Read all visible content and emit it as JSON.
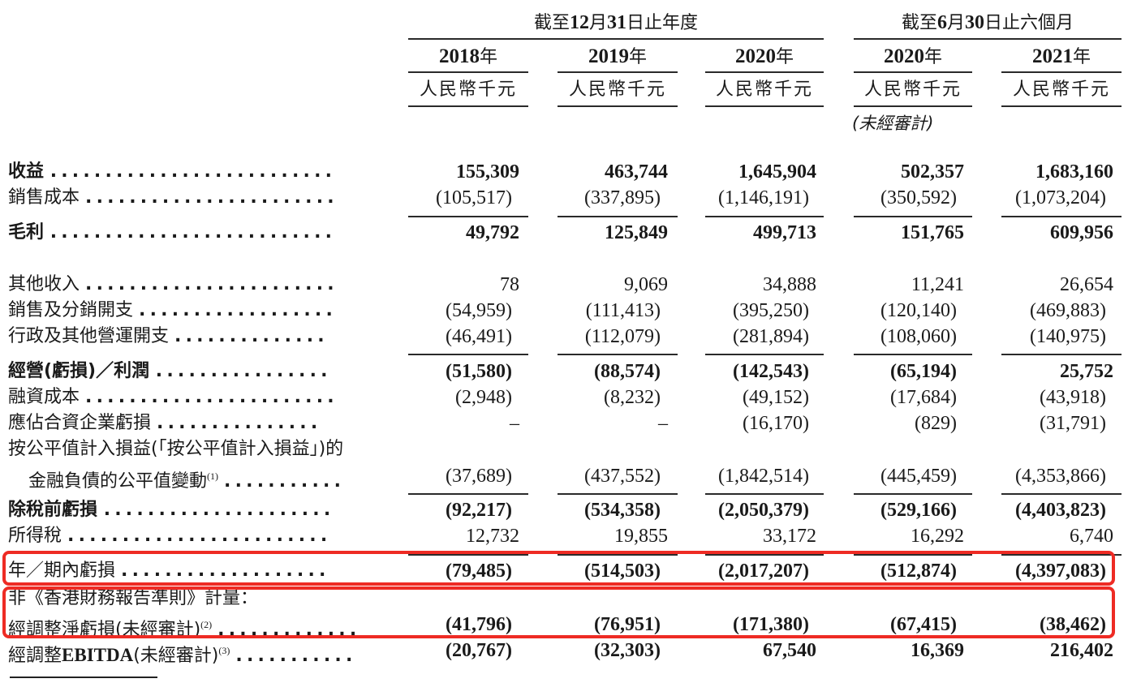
{
  "header": {
    "groups": [
      {
        "title_pre": "截至",
        "title_num1": "12",
        "title_mid": "月",
        "title_num2": "31",
        "title_post": "日止年度"
      },
      {
        "title_pre": "截至",
        "title_num1": "6",
        "title_mid": "月",
        "title_num2": "30",
        "title_post": "日止六個月"
      }
    ],
    "columns": [
      {
        "year": "2018",
        "year_suffix": "年",
        "unit": "人民幣千元",
        "note": ""
      },
      {
        "year": "2019",
        "year_suffix": "年",
        "unit": "人民幣千元",
        "note": ""
      },
      {
        "year": "2020",
        "year_suffix": "年",
        "unit": "人民幣千元",
        "note": ""
      },
      {
        "year": "2020",
        "year_suffix": "年",
        "unit": "人民幣千元",
        "note": "(未經審計)"
      },
      {
        "year": "2021",
        "year_suffix": "年",
        "unit": "人民幣千元",
        "note": ""
      }
    ]
  },
  "rows": [
    {
      "label": "收益",
      "dots": "..........................",
      "bold": true,
      "values": [
        "155,309",
        "463,744",
        "1,645,904",
        "502,357",
        "1,683,160"
      ]
    },
    {
      "label": "銷售成本",
      "dots": ".......................",
      "bold": false,
      "values": [
        "(105,517)",
        "(337,895)",
        "(1,146,191)",
        "(350,592)",
        "(1,073,204)"
      ]
    },
    {
      "label": "毛利",
      "dots": "..........................",
      "bold": true,
      "values": [
        "49,792",
        "125,849",
        "499,713",
        "151,765",
        "609,956"
      ]
    },
    {
      "label": "其他收入",
      "dots": ".......................",
      "bold": false,
      "values": [
        "78",
        "9,069",
        "34,888",
        "11,241",
        "26,654"
      ]
    },
    {
      "label": "銷售及分銷開支",
      "dots": "..................",
      "bold": false,
      "values": [
        "(54,959)",
        "(111,413)",
        "(395,250)",
        "(120,140)",
        "(469,883)"
      ]
    },
    {
      "label": "行政及其他營運開支",
      "dots": "..............",
      "bold": false,
      "values": [
        "(46,491)",
        "(112,079)",
        "(281,894)",
        "(108,060)",
        "(140,975)"
      ]
    },
    {
      "label": "經營(虧損)／利潤",
      "dots": "................",
      "bold": true,
      "values": [
        "(51,580)",
        "(88,574)",
        "(142,543)",
        "(65,194)",
        "25,752"
      ]
    },
    {
      "label": "融資成本",
      "dots": ".......................",
      "bold": false,
      "values": [
        "(2,948)",
        "(8,232)",
        "(49,152)",
        "(17,684)",
        "(43,918)"
      ]
    },
    {
      "label": "應佔合資企業虧損",
      "dots": "...............",
      "bold": false,
      "values": [
        "–",
        "–",
        "(16,170)",
        "(829)",
        "(31,791)"
      ]
    },
    {
      "label": "按公平值計入損益(「按公平值計入損益」)的",
      "dots": "",
      "bold": false,
      "values": [
        "",
        "",
        "",
        "",
        ""
      ]
    },
    {
      "label": "金融負債的公平值變動",
      "sup": "(1)",
      "dots": "...........",
      "bold": false,
      "indent": true,
      "values": [
        "(37,689)",
        "(437,552)",
        "(1,842,514)",
        "(445,459)",
        "(4,353,866)"
      ]
    },
    {
      "label": "除稅前虧損",
      "dots": ".....................",
      "bold": true,
      "values": [
        "(92,217)",
        "(534,358)",
        "(2,050,379)",
        "(529,166)",
        "(4,403,823)"
      ]
    },
    {
      "label": "所得稅",
      "dots": "........................",
      "bold": false,
      "values": [
        "12,732",
        "19,855",
        "33,172",
        "16,292",
        "6,740"
      ]
    },
    {
      "label": "年／期內虧損",
      "dots": "...................",
      "bold": false,
      "values": [
        "(79,485)",
        "(514,503)",
        "(2,017,207)",
        "(512,874)",
        "(4,397,083)"
      ],
      "values_bold": true
    },
    {
      "label": "非《香港財務報告準則》計量：",
      "dots": "",
      "bold": false,
      "values": [
        "",
        "",
        "",
        "",
        ""
      ]
    },
    {
      "label": "經調整淨虧損(未經審計)",
      "sup": "(2)",
      "dots": ".............",
      "bold": false,
      "values": [
        "(41,796)",
        "(76,951)",
        "(171,380)",
        "(67,415)",
        "(38,462)"
      ],
      "values_bold": true
    },
    {
      "label_pre": "經調整",
      "label_en": "EBITDA",
      "label_post": "(未經審計)",
      "sup": "(3)",
      "dots": "...........",
      "bold": false,
      "values": [
        "(20,767)",
        "(32,303)",
        "67,540",
        "16,369",
        "216,402"
      ],
      "values_bold": true
    }
  ],
  "highlights": [
    {
      "name": "loss-for-period",
      "color": "#ee2b24"
    },
    {
      "name": "non-hkfrs-adjusted-net-loss",
      "color": "#ee2b24"
    }
  ]
}
